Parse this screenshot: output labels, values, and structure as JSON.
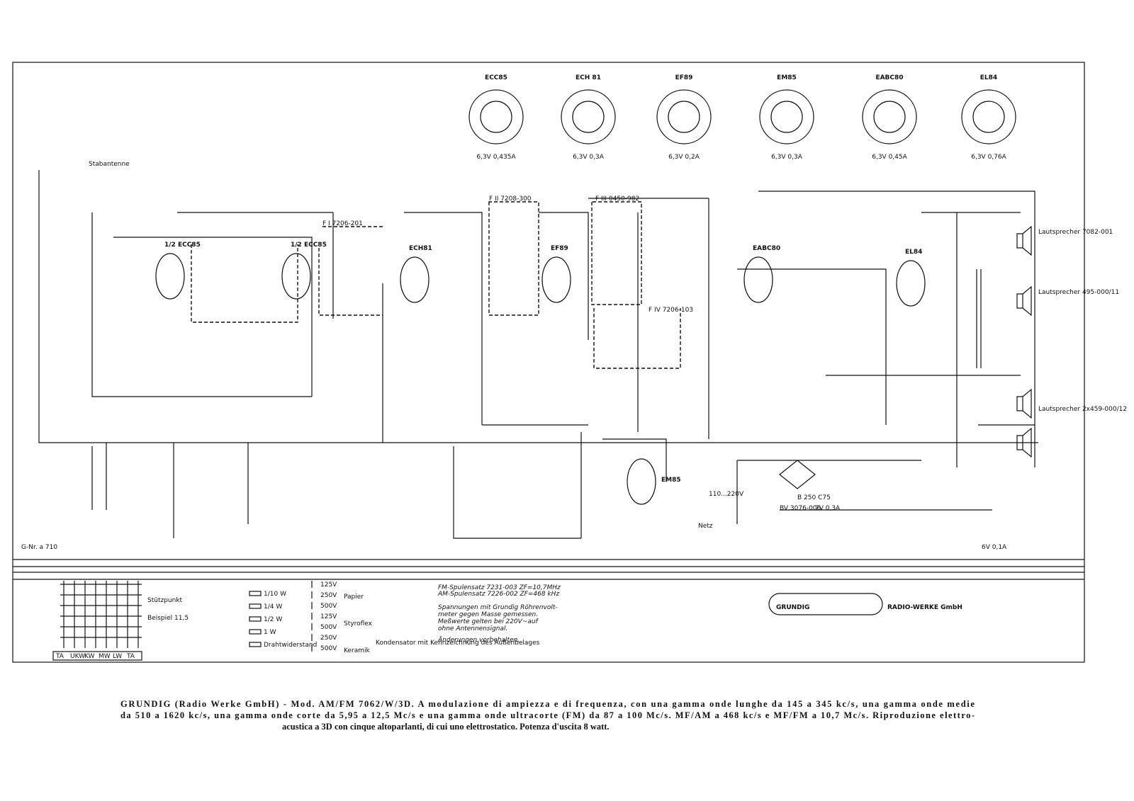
{
  "tube_bases": [
    {
      "name": "ECC85",
      "heater": "6,3V 0,435A"
    },
    {
      "name": "ECH 81",
      "heater": "6,3V 0,3A"
    },
    {
      "name": "EF89",
      "heater": "6,3V 0,2A"
    },
    {
      "name": "EM85",
      "heater": "6,3V 0,3A"
    },
    {
      "name": "EABC80",
      "heater": "6,3V 0,45A"
    },
    {
      "name": "EL84",
      "heater": "6,3V 0,76A"
    }
  ],
  "circuit_tubes": [
    "1/2 ECC85",
    "1/2 ECC85",
    "ECH81",
    "EF89",
    "EABC80",
    "EL84",
    "EM85"
  ],
  "filters": [
    "F I 7206-201",
    "F II 7208-300",
    "F III 0450-982",
    "F IV 7206-103"
  ],
  "speakers": [
    "Lautsprecher 7082-001",
    "Lautsprecher 495-000/11",
    "Lautsprecher 2x459-000/12"
  ],
  "drawing_number": "G-Nr. a 710",
  "antenna_label": "Stabantenne",
  "power": {
    "mains": "110...220V",
    "netz": "Netz",
    "rectifier": "B 250 C75",
    "transformer": "BV 3076-006",
    "pilot": "6V 0,1A",
    "dial": "7V 0,3A"
  },
  "switch_legend": {
    "items": [
      "Stützpunkt",
      "Beispiel 11,5"
    ],
    "positions": [
      "TA",
      "UKW",
      "KW",
      "MW",
      "LW",
      "TA"
    ]
  },
  "resistor_legend": [
    "1/10 W",
    "1/4 W",
    "1/2 W",
    "1 W",
    "Drahtwiderstand"
  ],
  "capacitor_legend": {
    "voltages": [
      "125V",
      "250V",
      "500V",
      "125V",
      "500V",
      "250V",
      "500V"
    ],
    "groups": [
      "Papier",
      "Styroflex",
      "Keramik"
    ],
    "note": "Kondensator mit Kennzeichnung des Außenbelages"
  },
  "notes": [
    "FM-Spulensatz 7231-003  ZF=10,7MHz",
    "AM-Spulensatz 7226-002  ZF=468 kHz",
    "Spannungen mit Grundig Röhrenvolt-",
    "meter gegen Masse gemessen.",
    "Meßwerte gelten bei 220V~auf",
    "ohne Antennensignal.",
    "Änderungen vorbehalten."
  ],
  "brand": {
    "logo": "GRUNDIG",
    "company": "RADIO-WERKE GmbH"
  },
  "caption": [
    "GRUNDIG (Radio Werke GmbH) - Mod. AM/FM 7062/W/3D. A modulazione di ampiezza e di frequenza, con una gamma onde lunghe da 145 a 345 kc/s, una gamma onde medie",
    "da 510 a 1620 kc/s, una gamma onde corte da 5,95 a 12,5 Mc/s e una gamma onde ultracorte (FM) da 87 a 100 Mc/s. MF/AM a 468 kc/s e MF/FM a 10,7 Mc/s. Riproduzione elettro-",
    "acustica a 3D con cinque altoparlanti, di cui uno elettrostatico. Potenza d'uscita 8 watt."
  ]
}
